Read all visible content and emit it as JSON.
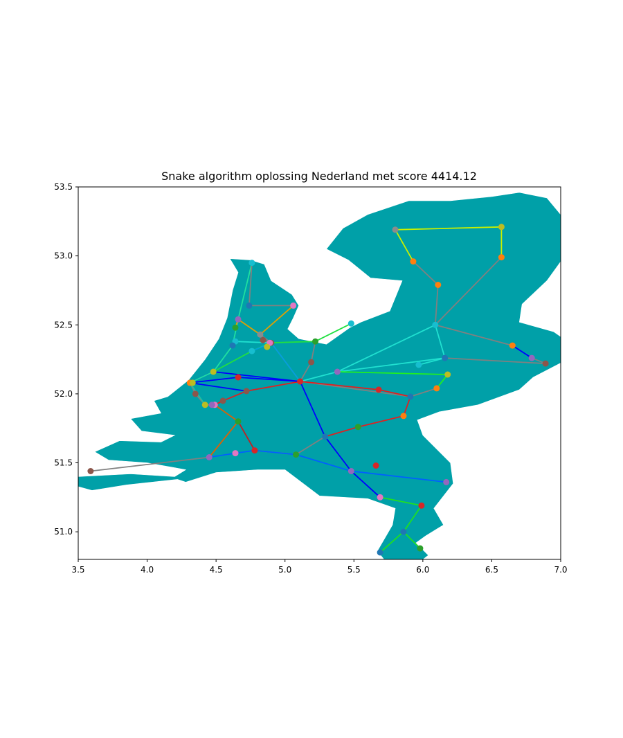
{
  "chart_data": {
    "type": "map-network",
    "title": "Snake algorithm oplossing Nederland met score 4414.12",
    "xlabel": "",
    "ylabel": "",
    "xlim": [
      3.5,
      7.0
    ],
    "ylim": [
      50.8,
      53.5
    ],
    "xticks": [
      "3.5",
      "4.0",
      "4.5",
      "5.0",
      "5.5",
      "6.0",
      "6.5",
      "7.0"
    ],
    "yticks": [
      "51.0",
      "51.5",
      "52.0",
      "52.5",
      "53.0",
      "53.5"
    ],
    "grid": false,
    "land_color": "#00A0A8",
    "border_color": "#ffffff",
    "routes": [
      {
        "color": "#c8f000",
        "points": [
          [
            5.8,
            53.19
          ],
          [
            6.57,
            53.21
          ],
          [
            6.57,
            52.99
          ]
        ]
      },
      {
        "color": "#c8f000",
        "points": [
          [
            5.8,
            53.19
          ],
          [
            5.93,
            52.96
          ]
        ]
      },
      {
        "color": "#808080",
        "points": [
          [
            5.93,
            52.96
          ],
          [
            6.11,
            52.79
          ],
          [
            6.09,
            52.5
          ],
          [
            6.65,
            52.35
          ]
        ]
      },
      {
        "color": "#808080",
        "points": [
          [
            6.57,
            52.99
          ],
          [
            6.09,
            52.5
          ]
        ]
      },
      {
        "color": "#0000ff",
        "points": [
          [
            6.65,
            52.35
          ],
          [
            6.79,
            52.26
          ]
        ]
      },
      {
        "color": "#808080",
        "points": [
          [
            6.79,
            52.26
          ],
          [
            6.89,
            52.22
          ]
        ]
      },
      {
        "color": "#20e0d0",
        "points": [
          [
            6.09,
            52.5
          ],
          [
            6.16,
            52.26
          ],
          [
            5.97,
            52.21
          ]
        ]
      },
      {
        "color": "#20e0d0",
        "points": [
          [
            6.09,
            52.5
          ],
          [
            5.38,
            52.16
          ],
          [
            5.11,
            52.09
          ]
        ]
      },
      {
        "color": "#20e0d0",
        "points": [
          [
            6.16,
            52.26
          ],
          [
            5.38,
            52.16
          ]
        ]
      },
      {
        "color": "#20f020",
        "points": [
          [
            5.38,
            52.16
          ],
          [
            6.18,
            52.14
          ],
          [
            6.1,
            52.04
          ]
        ]
      },
      {
        "color": "#808080",
        "points": [
          [
            6.16,
            52.26
          ],
          [
            6.89,
            52.22
          ]
        ]
      },
      {
        "color": "#808080",
        "points": [
          [
            6.1,
            52.04
          ],
          [
            5.91,
            51.98
          ],
          [
            5.11,
            52.09
          ]
        ]
      },
      {
        "color": "#e02020",
        "points": [
          [
            5.11,
            52.09
          ],
          [
            5.68,
            52.03
          ],
          [
            5.91,
            51.98
          ],
          [
            5.86,
            51.84
          ],
          [
            5.53,
            51.76
          ],
          [
            5.29,
            51.69
          ]
        ]
      },
      {
        "color": "#0000ff",
        "points": [
          [
            5.11,
            52.09
          ],
          [
            5.29,
            51.69
          ],
          [
            5.48,
            51.44
          ],
          [
            5.69,
            51.25
          ]
        ]
      },
      {
        "color": "#808080",
        "points": [
          [
            5.29,
            51.69
          ],
          [
            5.08,
            51.56
          ],
          [
            4.78,
            51.59
          ]
        ]
      },
      {
        "color": "#0060ff",
        "points": [
          [
            5.08,
            51.56
          ],
          [
            4.78,
            51.59
          ],
          [
            4.64,
            51.57
          ],
          [
            4.45,
            51.54
          ]
        ]
      },
      {
        "color": "#0060ff",
        "points": [
          [
            5.48,
            51.44
          ],
          [
            5.08,
            51.56
          ]
        ]
      },
      {
        "color": "#0060ff",
        "points": [
          [
            5.48,
            51.44
          ],
          [
            6.17,
            51.36
          ]
        ]
      },
      {
        "color": "#808080",
        "points": [
          [
            4.45,
            51.54
          ],
          [
            3.59,
            51.44
          ]
        ]
      },
      {
        "color": "#e06000",
        "points": [
          [
            4.45,
            51.54
          ],
          [
            4.66,
            51.8
          ],
          [
            4.49,
            51.92
          ]
        ]
      },
      {
        "color": "#c02020",
        "points": [
          [
            4.66,
            51.8
          ],
          [
            4.78,
            51.59
          ]
        ]
      },
      {
        "color": "#20e020",
        "points": [
          [
            5.69,
            51.25
          ],
          [
            5.99,
            51.19
          ],
          [
            5.86,
            51.0
          ],
          [
            5.69,
            50.85
          ]
        ]
      },
      {
        "color": "#20e020",
        "points": [
          [
            5.86,
            51.0
          ],
          [
            5.98,
            50.88
          ]
        ]
      },
      {
        "color": "#e02020",
        "points": [
          [
            5.11,
            52.09
          ],
          [
            4.72,
            52.02
          ],
          [
            4.55,
            51.95
          ],
          [
            4.49,
            51.92
          ]
        ]
      },
      {
        "color": "#808080",
        "points": [
          [
            4.49,
            51.92
          ],
          [
            4.42,
            51.92
          ],
          [
            4.35,
            52.0
          ],
          [
            4.31,
            52.08
          ]
        ]
      },
      {
        "color": "#20c0a0",
        "points": [
          [
            4.31,
            52.08
          ],
          [
            4.42,
            51.92
          ]
        ]
      },
      {
        "color": "#0000ff",
        "points": [
          [
            4.31,
            52.08
          ],
          [
            4.66,
            52.12
          ],
          [
            5.11,
            52.09
          ]
        ]
      },
      {
        "color": "#0000ff",
        "points": [
          [
            4.31,
            52.08
          ],
          [
            4.72,
            52.02
          ]
        ]
      },
      {
        "color": "#0000ff",
        "points": [
          [
            4.31,
            52.08
          ],
          [
            4.48,
            52.16
          ],
          [
            5.11,
            52.09
          ]
        ]
      },
      {
        "color": "#20e0a0",
        "points": [
          [
            4.31,
            52.08
          ],
          [
            4.48,
            52.16
          ],
          [
            4.62,
            52.35
          ],
          [
            4.66,
            52.54
          ],
          [
            4.76,
            52.95
          ]
        ]
      },
      {
        "color": "#20e040",
        "points": [
          [
            4.48,
            52.16
          ],
          [
            4.76,
            52.31
          ],
          [
            4.89,
            52.37
          ],
          [
            5.22,
            52.38
          ],
          [
            5.48,
            52.51
          ]
        ]
      },
      {
        "color": "#20e0d0",
        "points": [
          [
            4.64,
            52.38
          ],
          [
            4.89,
            52.37
          ]
        ]
      },
      {
        "color": "#808080",
        "points": [
          [
            4.76,
            52.95
          ],
          [
            4.74,
            52.64
          ],
          [
            5.06,
            52.64
          ]
        ]
      },
      {
        "color": "#e0a000",
        "points": [
          [
            4.66,
            52.54
          ],
          [
            4.82,
            52.43
          ],
          [
            5.06,
            52.64
          ]
        ]
      },
      {
        "color": "#e0a000",
        "points": [
          [
            4.66,
            52.54
          ],
          [
            4.64,
            52.48
          ]
        ]
      },
      {
        "color": "#808080",
        "points": [
          [
            4.82,
            52.43
          ],
          [
            4.9,
            52.37
          ],
          [
            5.11,
            52.09
          ]
        ]
      },
      {
        "color": "#00a0e0",
        "points": [
          [
            4.76,
            52.31
          ],
          [
            4.9,
            52.37
          ],
          [
            5.11,
            52.09
          ]
        ]
      },
      {
        "color": "#808080",
        "points": [
          [
            5.11,
            52.09
          ],
          [
            5.19,
            52.23
          ],
          [
            5.22,
            52.38
          ]
        ]
      },
      {
        "color": "#808080",
        "points": [
          [
            4.84,
            52.39
          ],
          [
            4.89,
            52.37
          ]
        ]
      }
    ],
    "stations": [
      {
        "lon": 5.8,
        "lat": 53.19,
        "color": "#8c8c8c"
      },
      {
        "lon": 6.57,
        "lat": 53.21,
        "color": "#bcbd22"
      },
      {
        "lon": 6.57,
        "lat": 52.99,
        "color": "#ff7f0e"
      },
      {
        "lon": 5.93,
        "lat": 52.96,
        "color": "#ff7f0e"
      },
      {
        "lon": 6.11,
        "lat": 52.79,
        "color": "#ff7f0e"
      },
      {
        "lon": 6.09,
        "lat": 52.5,
        "color": "#17becf"
      },
      {
        "lon": 6.65,
        "lat": 52.35,
        "color": "#ff7f0e"
      },
      {
        "lon": 6.79,
        "lat": 52.26,
        "color": "#9467bd"
      },
      {
        "lon": 6.89,
        "lat": 52.22,
        "color": "#8c564b"
      },
      {
        "lon": 6.16,
        "lat": 52.26,
        "color": "#1f77b4"
      },
      {
        "lon": 5.97,
        "lat": 52.21,
        "color": "#17becf"
      },
      {
        "lon": 6.18,
        "lat": 52.14,
        "color": "#bcbd22"
      },
      {
        "lon": 6.1,
        "lat": 52.04,
        "color": "#ff7f0e"
      },
      {
        "lon": 5.91,
        "lat": 51.98,
        "color": "#1f77b4"
      },
      {
        "lon": 5.68,
        "lat": 52.03,
        "color": "#d62728"
      },
      {
        "lon": 5.86,
        "lat": 51.84,
        "color": "#ff7f0e"
      },
      {
        "lon": 5.53,
        "lat": 51.76,
        "color": "#2ca02c"
      },
      {
        "lon": 5.29,
        "lat": 51.69,
        "color": "#1f77b4"
      },
      {
        "lon": 5.38,
        "lat": 52.16,
        "color": "#9467bd"
      },
      {
        "lon": 5.11,
        "lat": 52.09,
        "color": "#d62728"
      },
      {
        "lon": 5.48,
        "lat": 52.51,
        "color": "#17becf"
      },
      {
        "lon": 5.22,
        "lat": 52.38,
        "color": "#2ca02c"
      },
      {
        "lon": 5.19,
        "lat": 52.23,
        "color": "#8c564b"
      },
      {
        "lon": 4.9,
        "lat": 52.37,
        "color": "#8c564b"
      },
      {
        "lon": 4.89,
        "lat": 52.37,
        "color": "#e377c2"
      },
      {
        "lon": 4.87,
        "lat": 52.34,
        "color": "#bcbd22"
      },
      {
        "lon": 4.84,
        "lat": 52.39,
        "color": "#8c564b"
      },
      {
        "lon": 4.82,
        "lat": 52.43,
        "color": "#8c8c8c"
      },
      {
        "lon": 4.76,
        "lat": 52.31,
        "color": "#17becf"
      },
      {
        "lon": 4.64,
        "lat": 52.38,
        "color": "#17becf"
      },
      {
        "lon": 4.62,
        "lat": 52.35,
        "color": "#1f77b4"
      },
      {
        "lon": 4.66,
        "lat": 52.54,
        "color": "#9467bd"
      },
      {
        "lon": 4.64,
        "lat": 52.48,
        "color": "#2ca02c"
      },
      {
        "lon": 4.74,
        "lat": 52.64,
        "color": "#1f77b4"
      },
      {
        "lon": 5.06,
        "lat": 52.64,
        "color": "#e377c2"
      },
      {
        "lon": 4.76,
        "lat": 52.95,
        "color": "#17becf"
      },
      {
        "lon": 4.48,
        "lat": 52.16,
        "color": "#bcbd22"
      },
      {
        "lon": 4.66,
        "lat": 52.12,
        "color": "#d62728"
      },
      {
        "lon": 4.72,
        "lat": 52.02,
        "color": "#8c564b"
      },
      {
        "lon": 4.31,
        "lat": 52.08,
        "color": "#ff7f0e"
      },
      {
        "lon": 4.33,
        "lat": 52.08,
        "color": "#bcbd22"
      },
      {
        "lon": 4.35,
        "lat": 52.0,
        "color": "#8c564b"
      },
      {
        "lon": 4.42,
        "lat": 51.92,
        "color": "#bcbd22"
      },
      {
        "lon": 4.49,
        "lat": 51.92,
        "color": "#e377c2"
      },
      {
        "lon": 4.47,
        "lat": 51.92,
        "color": "#9467bd"
      },
      {
        "lon": 4.55,
        "lat": 51.95,
        "color": "#8c564b"
      },
      {
        "lon": 4.66,
        "lat": 51.8,
        "color": "#2ca02c"
      },
      {
        "lon": 4.78,
        "lat": 51.59,
        "color": "#d62728"
      },
      {
        "lon": 4.64,
        "lat": 51.57,
        "color": "#e377c2"
      },
      {
        "lon": 4.45,
        "lat": 51.54,
        "color": "#9467bd"
      },
      {
        "lon": 3.59,
        "lat": 51.44,
        "color": "#8c564b"
      },
      {
        "lon": 5.08,
        "lat": 51.56,
        "color": "#2ca02c"
      },
      {
        "lon": 5.48,
        "lat": 51.44,
        "color": "#9467bd"
      },
      {
        "lon": 5.66,
        "lat": 51.48,
        "color": "#d62728"
      },
      {
        "lon": 6.17,
        "lat": 51.36,
        "color": "#9467bd"
      },
      {
        "lon": 5.69,
        "lat": 51.25,
        "color": "#e377c2"
      },
      {
        "lon": 5.99,
        "lat": 51.19,
        "color": "#d62728"
      },
      {
        "lon": 5.86,
        "lat": 51.0,
        "color": "#1f77b4"
      },
      {
        "lon": 5.98,
        "lat": 50.88,
        "color": "#2ca02c"
      },
      {
        "lon": 5.69,
        "lat": 50.85,
        "color": "#1f77b4"
      }
    ],
    "land": {
      "mainland": [
        [
          4.6,
          52.98
        ],
        [
          4.75,
          52.97
        ],
        [
          4.85,
          52.94
        ],
        [
          4.9,
          52.82
        ],
        [
          5.05,
          52.72
        ],
        [
          5.1,
          52.64
        ],
        [
          5.06,
          52.55
        ],
        [
          5.02,
          52.47
        ],
        [
          5.1,
          52.4
        ],
        [
          5.3,
          52.36
        ],
        [
          5.47,
          52.48
        ],
        [
          5.55,
          52.52
        ],
        [
          5.76,
          52.6
        ],
        [
          5.85,
          52.82
        ],
        [
          5.62,
          52.84
        ],
        [
          5.46,
          52.97
        ],
        [
          5.3,
          53.05
        ],
        [
          5.42,
          53.2
        ],
        [
          5.6,
          53.3
        ],
        [
          5.9,
          53.4
        ],
        [
          6.2,
          53.4
        ],
        [
          6.5,
          53.43
        ],
        [
          6.7,
          53.46
        ],
        [
          6.9,
          53.42
        ],
        [
          7.0,
          53.3
        ],
        [
          7.05,
          53.17
        ],
        [
          7.03,
          53.0
        ],
        [
          6.9,
          52.82
        ],
        [
          6.72,
          52.65
        ],
        [
          6.7,
          52.52
        ],
        [
          6.95,
          52.45
        ],
        [
          7.05,
          52.38
        ],
        [
          7.05,
          52.25
        ],
        [
          6.8,
          52.12
        ],
        [
          6.7,
          52.03
        ],
        [
          6.4,
          51.92
        ],
        [
          6.12,
          51.87
        ],
        [
          5.96,
          51.81
        ],
        [
          6.0,
          51.7
        ],
        [
          6.2,
          51.5
        ],
        [
          6.22,
          51.35
        ],
        [
          6.08,
          51.17
        ],
        [
          6.15,
          51.05
        ],
        [
          6.02,
          50.97
        ],
        [
          5.95,
          50.92
        ],
        [
          6.04,
          50.83
        ],
        [
          5.95,
          50.76
        ],
        [
          5.75,
          50.76
        ],
        [
          5.67,
          50.86
        ],
        [
          5.78,
          51.05
        ],
        [
          5.8,
          51.17
        ],
        [
          5.6,
          51.24
        ],
        [
          5.25,
          51.26
        ],
        [
          5.0,
          51.45
        ],
        [
          4.8,
          51.45
        ],
        [
          4.5,
          51.43
        ],
        [
          4.28,
          51.36
        ],
        [
          4.22,
          51.38
        ],
        [
          3.85,
          51.34
        ],
        [
          3.6,
          51.3
        ],
        [
          3.38,
          51.36
        ],
        [
          3.5,
          51.4
        ],
        [
          3.88,
          51.42
        ],
        [
          4.2,
          51.4
        ],
        [
          4.28,
          51.45
        ],
        [
          4.0,
          51.5
        ],
        [
          3.72,
          51.52
        ],
        [
          3.62,
          51.58
        ],
        [
          3.8,
          51.66
        ],
        [
          4.1,
          51.65
        ],
        [
          4.2,
          51.7
        ],
        [
          3.96,
          51.73
        ],
        [
          3.88,
          51.82
        ],
        [
          4.1,
          51.86
        ],
        [
          4.05,
          51.95
        ],
        [
          4.15,
          51.98
        ],
        [
          4.3,
          52.1
        ],
        [
          4.42,
          52.25
        ],
        [
          4.52,
          52.4
        ],
        [
          4.58,
          52.55
        ],
        [
          4.62,
          52.75
        ],
        [
          4.66,
          52.88
        ]
      ]
    }
  }
}
